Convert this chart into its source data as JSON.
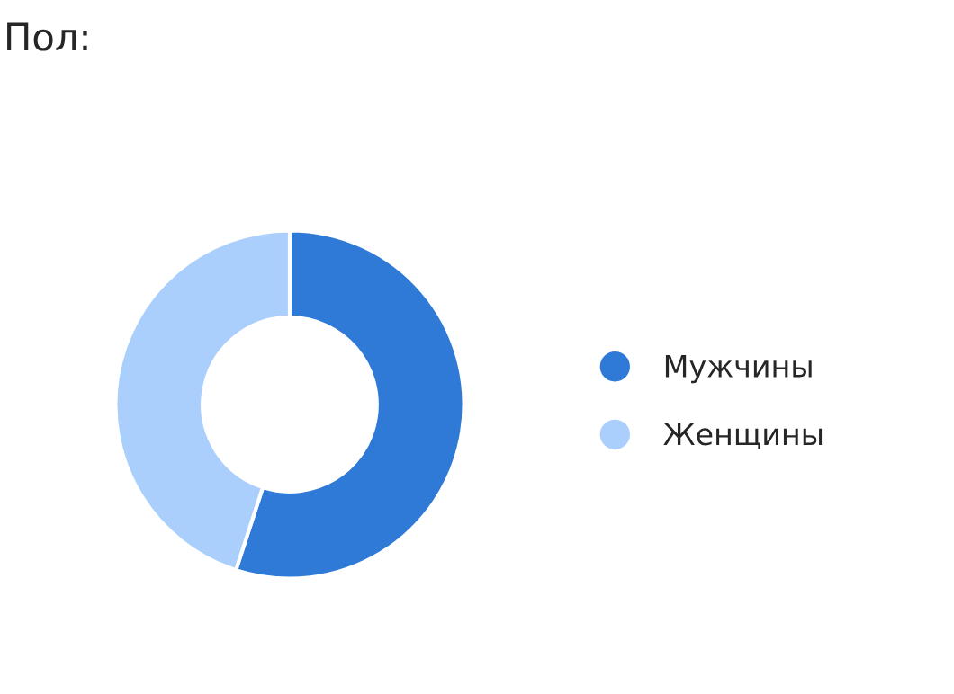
{
  "chart_data": {
    "type": "donut",
    "title": "Пол:",
    "categories": [
      "Мужчины",
      "Женщины"
    ],
    "values": [
      55,
      45
    ],
    "colors": [
      "#2e7ad6",
      "#aacffc"
    ],
    "legend": "right"
  }
}
